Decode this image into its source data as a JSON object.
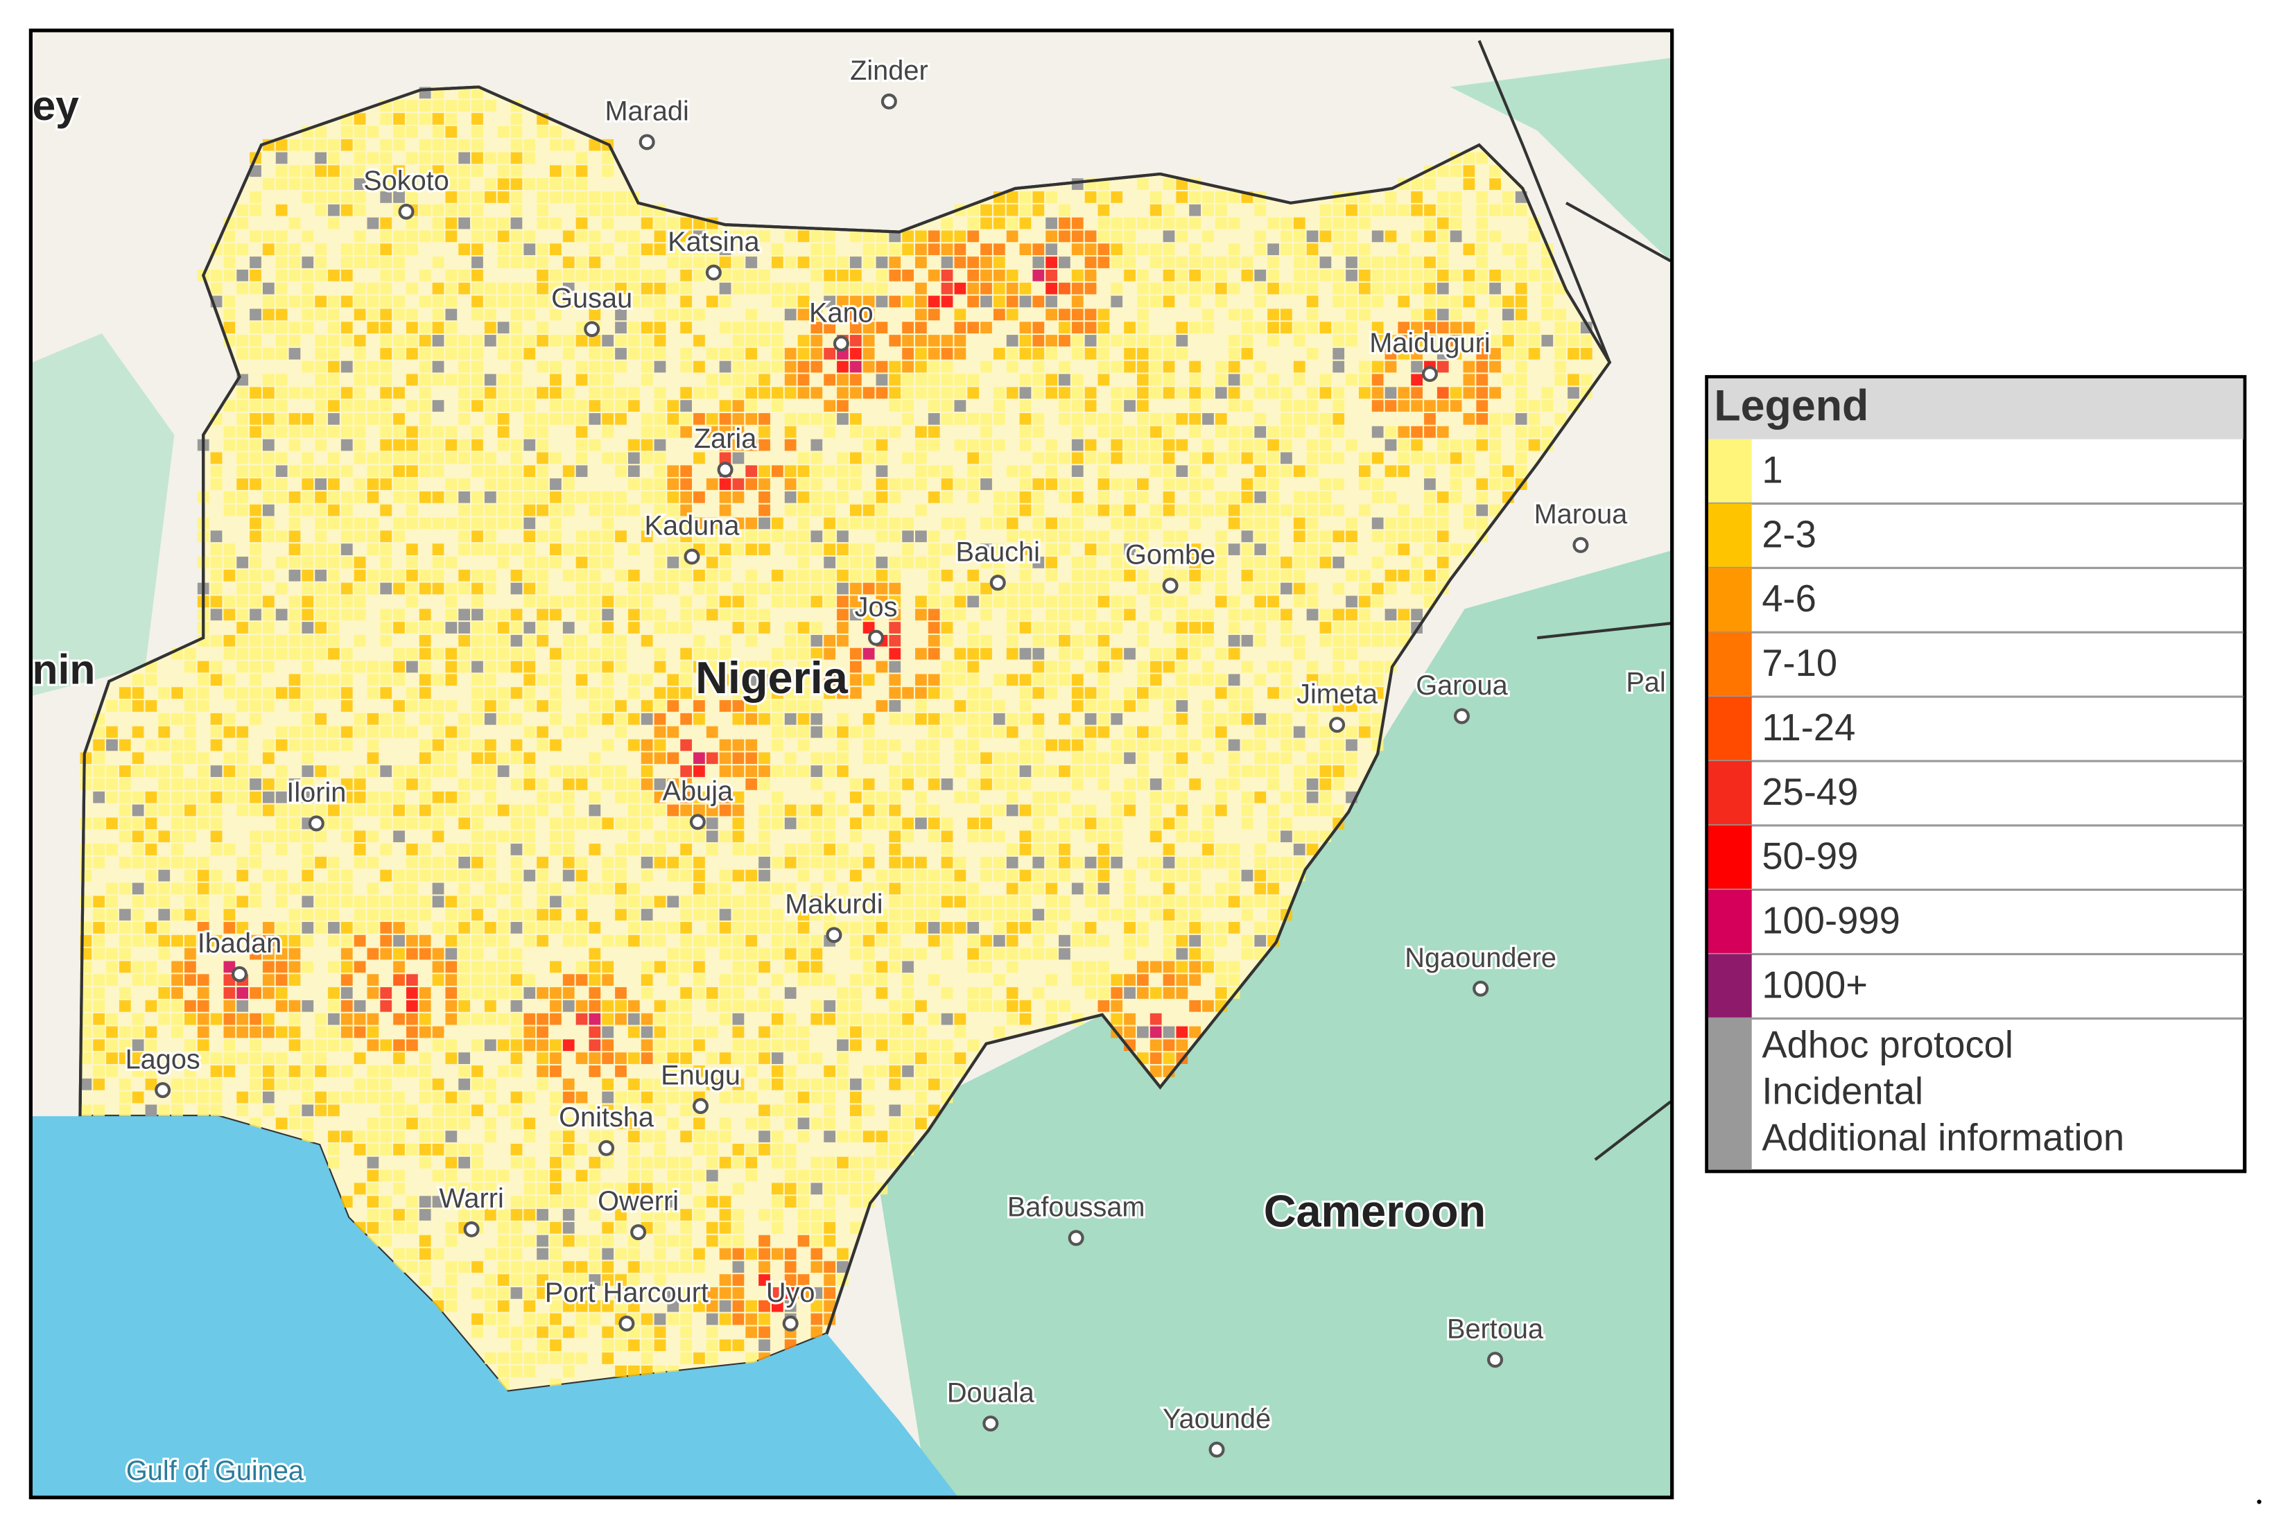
{
  "map": {
    "places": [
      {
        "name": "Zinder"
      },
      {
        "name": "Maradi"
      },
      {
        "name": "Sokoto"
      },
      {
        "name": "Katsina"
      },
      {
        "name": "Gusau"
      },
      {
        "name": "Kano"
      },
      {
        "name": "Maiduguri"
      },
      {
        "name": "Zaria"
      },
      {
        "name": "Maroua"
      },
      {
        "name": "Kaduna"
      },
      {
        "name": "Bauchi"
      },
      {
        "name": "Gombe"
      },
      {
        "name": "Jos"
      },
      {
        "name": "Nigeria"
      },
      {
        "name": "Jimeta"
      },
      {
        "name": "Garoua"
      },
      {
        "name": "Pal"
      },
      {
        "name": "nin"
      },
      {
        "name": "ey"
      },
      {
        "name": "Abuja"
      },
      {
        "name": "Ilorin"
      },
      {
        "name": "Makurdi"
      },
      {
        "name": "Ngaoundere"
      },
      {
        "name": "Ibadan"
      },
      {
        "name": "Lagos"
      },
      {
        "name": "Enugu"
      },
      {
        "name": "Onitsha"
      },
      {
        "name": "Warri"
      },
      {
        "name": "Owerri"
      },
      {
        "name": "Bafoussam"
      },
      {
        "name": "Cameroon"
      },
      {
        "name": "Port Harcourt"
      },
      {
        "name": "Uyo"
      },
      {
        "name": "Bertoua"
      },
      {
        "name": "Douala"
      },
      {
        "name": "Yaoundé"
      },
      {
        "name": "Gulf of Guinea"
      }
    ]
  },
  "legend": {
    "title": "Legend",
    "items": [
      {
        "label": "1",
        "color": "#fff57a"
      },
      {
        "label": "2-3",
        "color": "#ffc400"
      },
      {
        "label": "4-6",
        "color": "#ff9800"
      },
      {
        "label": "7-10",
        "color": "#ff7500"
      },
      {
        "label": "11-24",
        "color": "#ff4b00"
      },
      {
        "label": "25-49",
        "color": "#f42a1c"
      },
      {
        "label": "50-99",
        "color": "#ff0000"
      },
      {
        "label": "100-999",
        "color": "#d4005a"
      },
      {
        "label": "1000+",
        "color": "#8e1a6b"
      }
    ],
    "other": {
      "color": "#999999",
      "lines": [
        "Adhoc protocol",
        "Incidental",
        "Additional information"
      ]
    }
  }
}
